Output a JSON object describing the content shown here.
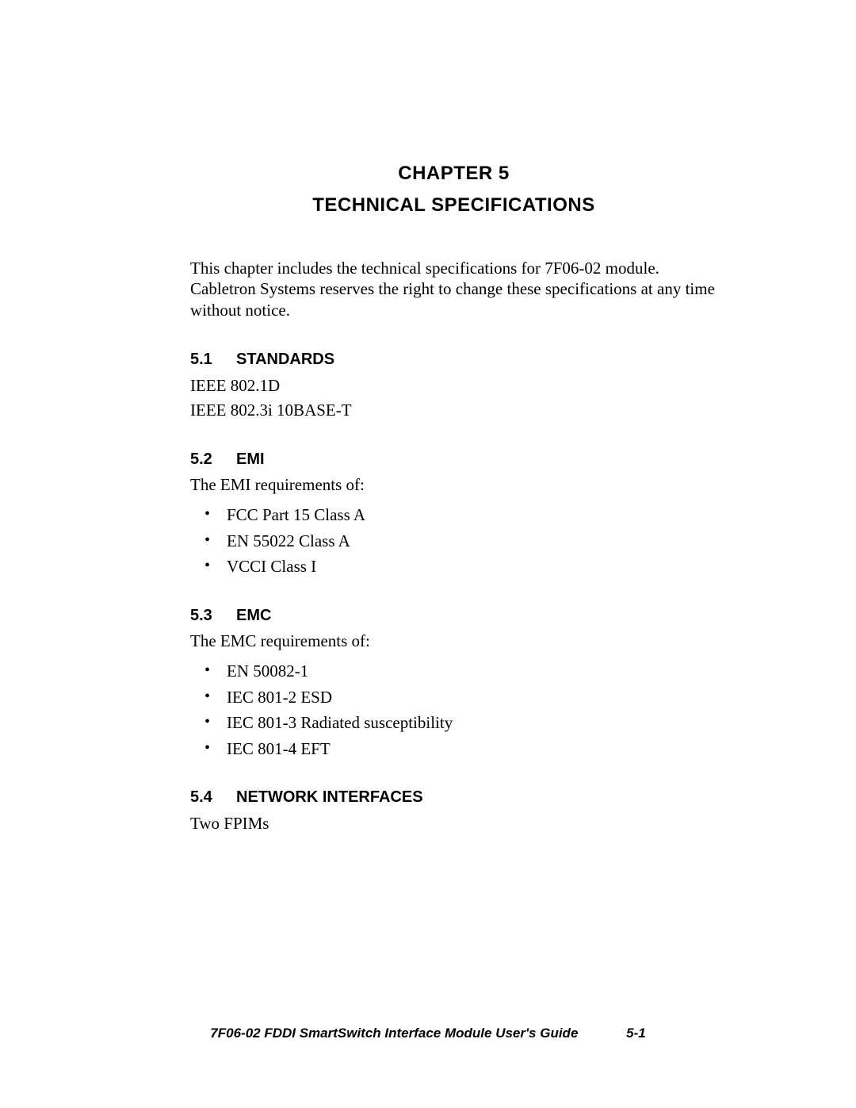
{
  "chapter": {
    "number_label": "CHAPTER 5",
    "title": "TECHNICAL SPECIFICATIONS"
  },
  "intro": "This chapter includes the technical specifications for 7F06-02 module. Cabletron Systems reserves the right to change these specifications at any time without notice.",
  "sections": {
    "standards": {
      "num": "5.1",
      "title": "STANDARDS",
      "lines": [
        "IEEE 802.1D",
        "IEEE 802.3i 10BASE-T"
      ]
    },
    "emi": {
      "num": "5.2",
      "title": "EMI",
      "lead": "The EMI requirements of:",
      "items": [
        "FCC Part 15 Class A",
        "EN 55022 Class A",
        "VCCI Class I"
      ]
    },
    "emc": {
      "num": "5.3",
      "title": "EMC",
      "lead": "The EMC requirements of:",
      "items": [
        "EN 50082-1",
        "IEC 801-2 ESD",
        "IEC 801-3 Radiated susceptibility",
        "IEC 801-4 EFT"
      ]
    },
    "network": {
      "num": "5.4",
      "title": "NETWORK INTERFACES",
      "lines": [
        "Two FPIMs"
      ]
    }
  },
  "footer": {
    "title": "7F06-02 FDDI SmartSwitch Interface Module User's Guide",
    "page": "5-1"
  }
}
